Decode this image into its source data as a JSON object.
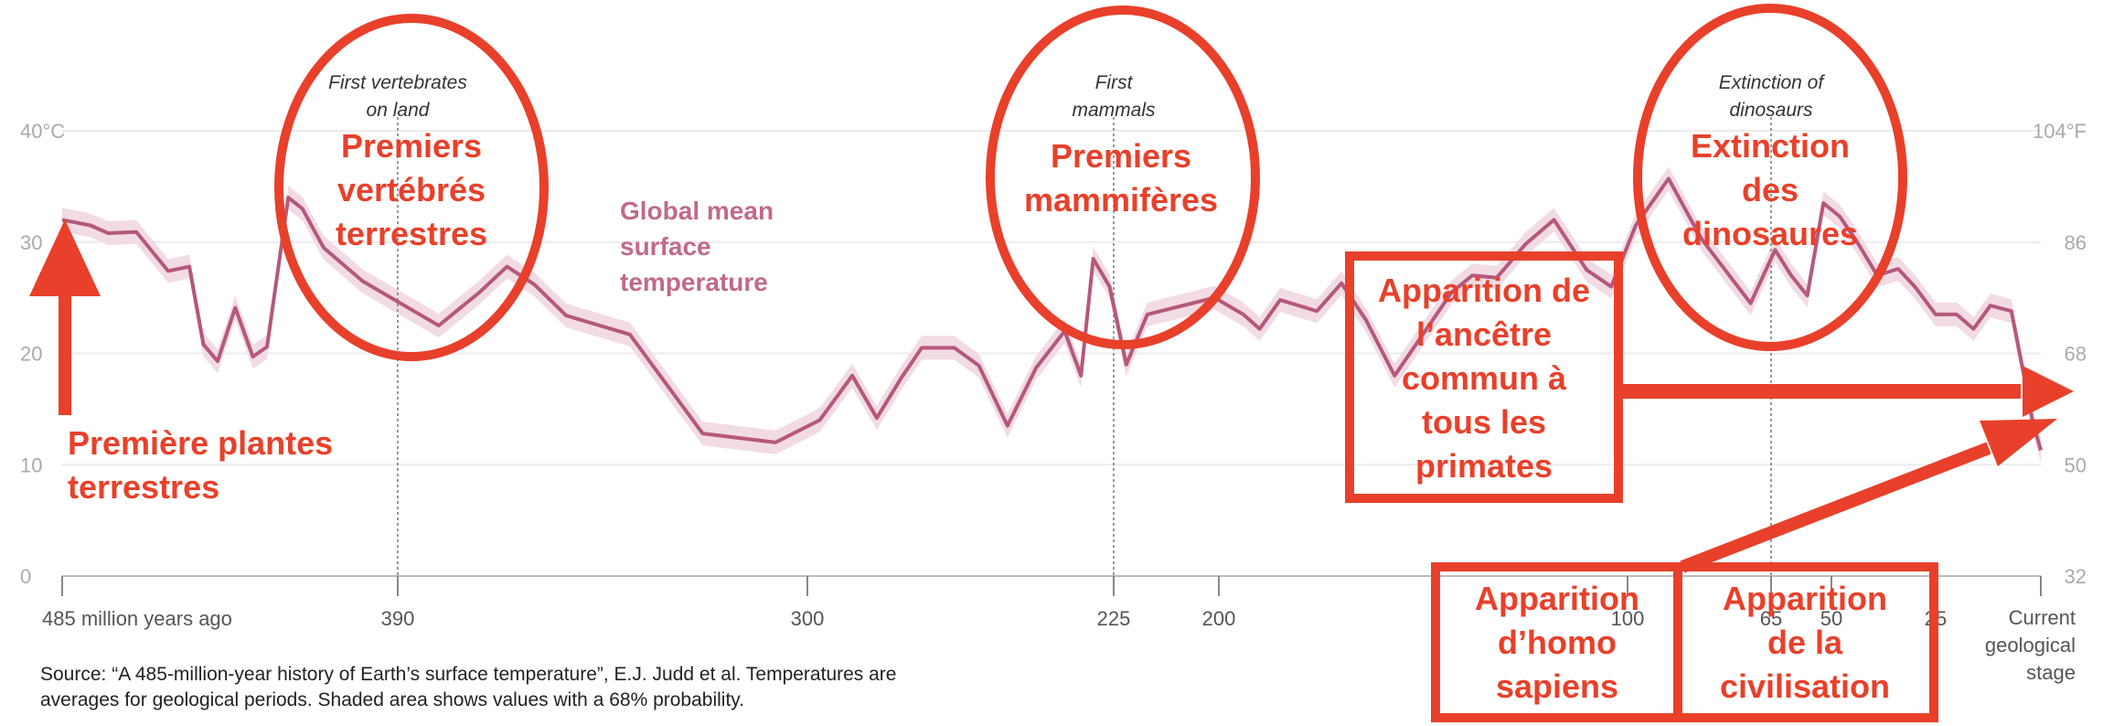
{
  "chart_data": {
    "type": "line",
    "series": [
      {
        "name": "Global mean surface temperature",
        "color": "#b5587c",
        "band_color": "#f2dbe4",
        "points": [
          {
            "x": 485,
            "y": 32
          },
          {
            "x": 477,
            "y": 31.5
          },
          {
            "x": 472,
            "y": 30.8
          },
          {
            "x": 464,
            "y": 30.9
          },
          {
            "x": 455,
            "y": 27.4
          },
          {
            "x": 449,
            "y": 27.8
          },
          {
            "x": 445,
            "y": 20.8
          },
          {
            "x": 441,
            "y": 19.3
          },
          {
            "x": 436,
            "y": 24.1
          },
          {
            "x": 431,
            "y": 19.7
          },
          {
            "x": 427,
            "y": 20.6
          },
          {
            "x": 421,
            "y": 34
          },
          {
            "x": 417,
            "y": 33
          },
          {
            "x": 411,
            "y": 29.5
          },
          {
            "x": 400,
            "y": 26.5
          },
          {
            "x": 381,
            "y": 22.5
          },
          {
            "x": 372,
            "y": 25.5
          },
          {
            "x": 366,
            "y": 27.8
          },
          {
            "x": 360,
            "y": 26.2
          },
          {
            "x": 353,
            "y": 23.4
          },
          {
            "x": 339,
            "y": 21.7
          },
          {
            "x": 323,
            "y": 12.8
          },
          {
            "x": 307,
            "y": 12
          },
          {
            "x": 297,
            "y": 14
          },
          {
            "x": 289,
            "y": 18
          },
          {
            "x": 283,
            "y": 14.2
          },
          {
            "x": 277,
            "y": 17.8
          },
          {
            "x": 272,
            "y": 20.5
          },
          {
            "x": 264,
            "y": 20.5
          },
          {
            "x": 258,
            "y": 18.9
          },
          {
            "x": 251,
            "y": 13.5
          },
          {
            "x": 244,
            "y": 18.7
          },
          {
            "x": 237,
            "y": 22
          },
          {
            "x": 233,
            "y": 18
          },
          {
            "x": 230,
            "y": 28.5
          },
          {
            "x": 226,
            "y": 26
          },
          {
            "x": 222,
            "y": 19
          },
          {
            "x": 217,
            "y": 23.5
          },
          {
            "x": 201,
            "y": 25
          },
          {
            "x": 194,
            "y": 23.5
          },
          {
            "x": 190,
            "y": 22.2
          },
          {
            "x": 185,
            "y": 24.8
          },
          {
            "x": 176,
            "y": 23.8
          },
          {
            "x": 170,
            "y": 26.3
          },
          {
            "x": 164,
            "y": 23
          },
          {
            "x": 157,
            "y": 18
          },
          {
            "x": 143,
            "y": 25.5
          },
          {
            "x": 138,
            "y": 27
          },
          {
            "x": 132,
            "y": 26.8
          },
          {
            "x": 125,
            "y": 29.8
          },
          {
            "x": 118,
            "y": 32
          },
          {
            "x": 110,
            "y": 27.5
          },
          {
            "x": 104,
            "y": 26
          },
          {
            "x": 98,
            "y": 31.5
          },
          {
            "x": 90,
            "y": 35.7
          },
          {
            "x": 82,
            "y": 30.3
          },
          {
            "x": 76,
            "y": 27.4
          },
          {
            "x": 70,
            "y": 24.5
          },
          {
            "x": 64,
            "y": 29.3
          },
          {
            "x": 60,
            "y": 27
          },
          {
            "x": 56,
            "y": 25.2
          },
          {
            "x": 52,
            "y": 33.5
          },
          {
            "x": 48,
            "y": 32.3
          },
          {
            "x": 44,
            "y": 30.1
          },
          {
            "x": 39,
            "y": 27
          },
          {
            "x": 34,
            "y": 27.6
          },
          {
            "x": 30,
            "y": 26
          },
          {
            "x": 25,
            "y": 23.5
          },
          {
            "x": 20,
            "y": 23.5
          },
          {
            "x": 16,
            "y": 22.2
          },
          {
            "x": 12,
            "y": 24.3
          },
          {
            "x": 7,
            "y": 23.8
          },
          {
            "x": 4,
            "y": 18
          },
          {
            "x": 2,
            "y": 14
          },
          {
            "x": 0,
            "y": 11.3
          }
        ]
      }
    ],
    "series_label": [
      "Global mean",
      "surface",
      "temperature"
    ],
    "x_axis": {
      "reversed": true,
      "unit": "million years ago",
      "ticks": [
        {
          "value": 485,
          "label": "485 million years ago"
        },
        {
          "value": 390,
          "label": "390"
        },
        {
          "value": 300,
          "label": "300"
        },
        {
          "value": 225,
          "label": "225"
        },
        {
          "value": 200,
          "label": "200"
        },
        {
          "value": 100,
          "label": "100"
        },
        {
          "value": 65,
          "label": "65"
        },
        {
          "value": 50,
          "label": "50"
        },
        {
          "value": 25,
          "label": "25"
        },
        {
          "value": 0,
          "label": [
            "Current",
            "geological",
            "stage"
          ]
        }
      ]
    },
    "y_axis_left": {
      "min": 0,
      "max": 40,
      "ticks": [
        {
          "value": 0,
          "label": "0"
        },
        {
          "value": 10,
          "label": "10"
        },
        {
          "value": 20,
          "label": "20"
        },
        {
          "value": 30,
          "label": "30"
        },
        {
          "value": 40,
          "label": "40°C"
        }
      ]
    },
    "y_axis_right": {
      "ticks": [
        {
          "value": 0,
          "label": "32"
        },
        {
          "value": 10,
          "label": "50"
        },
        {
          "value": 20,
          "label": "68"
        },
        {
          "value": 30,
          "label": "86"
        },
        {
          "value": 40,
          "label": "104°F"
        }
      ]
    },
    "grid": true,
    "events": [
      {
        "x": 390,
        "lines": [
          "First vertebrates",
          "on land"
        ]
      },
      {
        "x": 225,
        "lines": [
          "First",
          "mammals"
        ]
      },
      {
        "x": 65,
        "lines": [
          "Extinction of",
          "dinosaurs"
        ]
      }
    ],
    "source": [
      "Source: “A 485-million-year history of Earth’s surface temperature”, E.J. Judd et al. Temperatures are",
      "averages for geological periods. Shaded area shows values with a 68% probability."
    ]
  },
  "annotations": {
    "color": "#e8402a",
    "first_land_plants": [
      "Première plantes",
      "terrestres"
    ],
    "first_vertebrates": [
      "Premiers",
      "vertébrés",
      "terrestres"
    ],
    "first_mammals": [
      "Premiers",
      "mammifères"
    ],
    "dinosaur_extinction": [
      "Extinction",
      "des",
      "dinosaures"
    ],
    "primate_ancestor": [
      "Apparition de",
      "l’ancêtre",
      "commun à",
      "tous les",
      "primates"
    ],
    "homo_sapiens": [
      "Apparition",
      "d’homo",
      "sapiens"
    ],
    "civilisation": [
      "Apparition",
      "de la",
      "civilisation"
    ]
  }
}
